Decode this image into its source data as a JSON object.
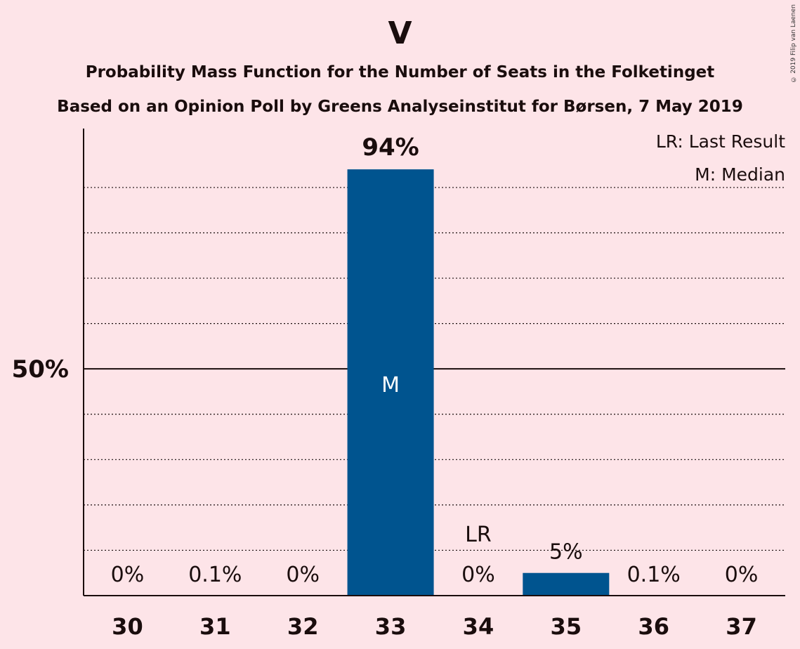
{
  "chart_data": {
    "type": "bar",
    "title": "V",
    "subtitle_1": "Probability Mass Function for the Number of Seats in the Folketinget",
    "subtitle_2": "Based on an Opinion Poll by Greens Analyseinstitut for Børsen, 7 May 2019",
    "copyright": "© 2019 Filip van Laenen",
    "categories": [
      "30",
      "31",
      "32",
      "33",
      "34",
      "35",
      "36",
      "37"
    ],
    "values": [
      0,
      0.1,
      0,
      94,
      0,
      5,
      0.1,
      0
    ],
    "value_labels": [
      "0%",
      "0.1%",
      "0%",
      "94%",
      "0%",
      "5%",
      "0.1%",
      "0%"
    ],
    "ylim": [
      0,
      103
    ],
    "y_tick_label": "50%",
    "y_major_tick": 50,
    "y_minor_ticks": [
      10,
      20,
      30,
      40,
      60,
      70,
      80,
      90
    ],
    "bar_color": "#00548f",
    "median_category": "33",
    "median_marker": "M",
    "last_result_category": "34",
    "last_result_marker": "LR",
    "legend": [
      "LR: Last Result",
      "M: Median"
    ],
    "legend_position": "top-right"
  }
}
